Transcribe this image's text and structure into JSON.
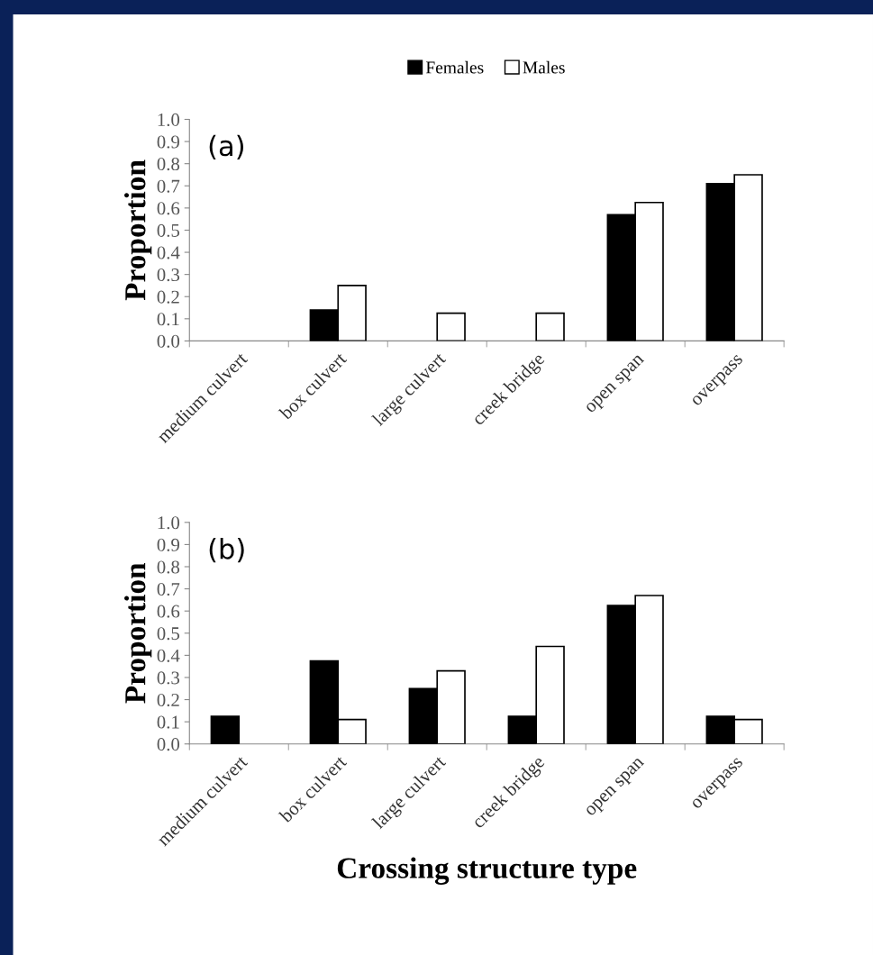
{
  "chart_data": [
    {
      "type": "bar",
      "ylabel": "Proportion",
      "annotations": [
        "(a)"
      ],
      "legend": "top",
      "categories": [
        "medium culvert",
        "box culvert",
        "large culvert",
        "creek bridge",
        "open span",
        "overpass"
      ],
      "series": [
        {
          "name": "Females",
          "color": "#000000",
          "values": [
            0,
            0.14,
            0,
            0,
            0.57,
            0.71
          ]
        },
        {
          "name": "Males",
          "color": "#ffffff",
          "values": [
            0,
            0.25,
            0.125,
            0.125,
            0.625,
            0.75
          ]
        }
      ],
      "ylim": [
        0,
        1
      ],
      "yticks": [
        {
          "value": 0,
          "label": "0.0"
        },
        {
          "value": 0.1,
          "label": "0.1"
        },
        {
          "value": 0.2,
          "label": "0.2"
        },
        {
          "value": 0.3,
          "label": "0.3"
        },
        {
          "value": 0.4,
          "label": "0.4"
        },
        {
          "value": 0.5,
          "label": "0.5"
        },
        {
          "value": 0.6,
          "label": "0.6"
        },
        {
          "value": 0.7,
          "label": "0.7"
        },
        {
          "value": 0.8,
          "label": "0.8"
        },
        {
          "value": 0.9,
          "label": "0.9"
        },
        {
          "value": 1,
          "label": "1.0"
        }
      ]
    },
    {
      "type": "bar",
      "ylabel": "Proportion",
      "xlabel": "Crossing structure type",
      "annotations": [
        "(b)"
      ],
      "categories": [
        "medium culvert",
        "box culvert",
        "large culvert",
        "creek bridge",
        "open span",
        "overpass"
      ],
      "series": [
        {
          "color": "#000000",
          "values": [
            0.125,
            0.375,
            0.25,
            0.125,
            0.625,
            0.125
          ]
        },
        {
          "color": "#ffffff",
          "values": [
            0,
            0.11,
            0.33,
            0.44,
            0.67,
            0.11
          ]
        }
      ],
      "ylim": [
        0,
        1
      ],
      "yticks": [
        {
          "value": 0,
          "label": "0.0"
        },
        {
          "value": 0.1,
          "label": "0.1"
        },
        {
          "value": 0.2,
          "label": "0.2"
        },
        {
          "value": 0.3,
          "label": "0.3"
        },
        {
          "value": 0.4,
          "label": "0.4"
        },
        {
          "value": 0.5,
          "label": "0.5"
        },
        {
          "value": 0.6,
          "label": "0.6"
        },
        {
          "value": 0.7,
          "label": "0.7"
        },
        {
          "value": 0.8,
          "label": "0.8"
        },
        {
          "value": 0.9,
          "label": "0.9"
        },
        {
          "value": 1,
          "label": "1.0"
        }
      ]
    }
  ]
}
